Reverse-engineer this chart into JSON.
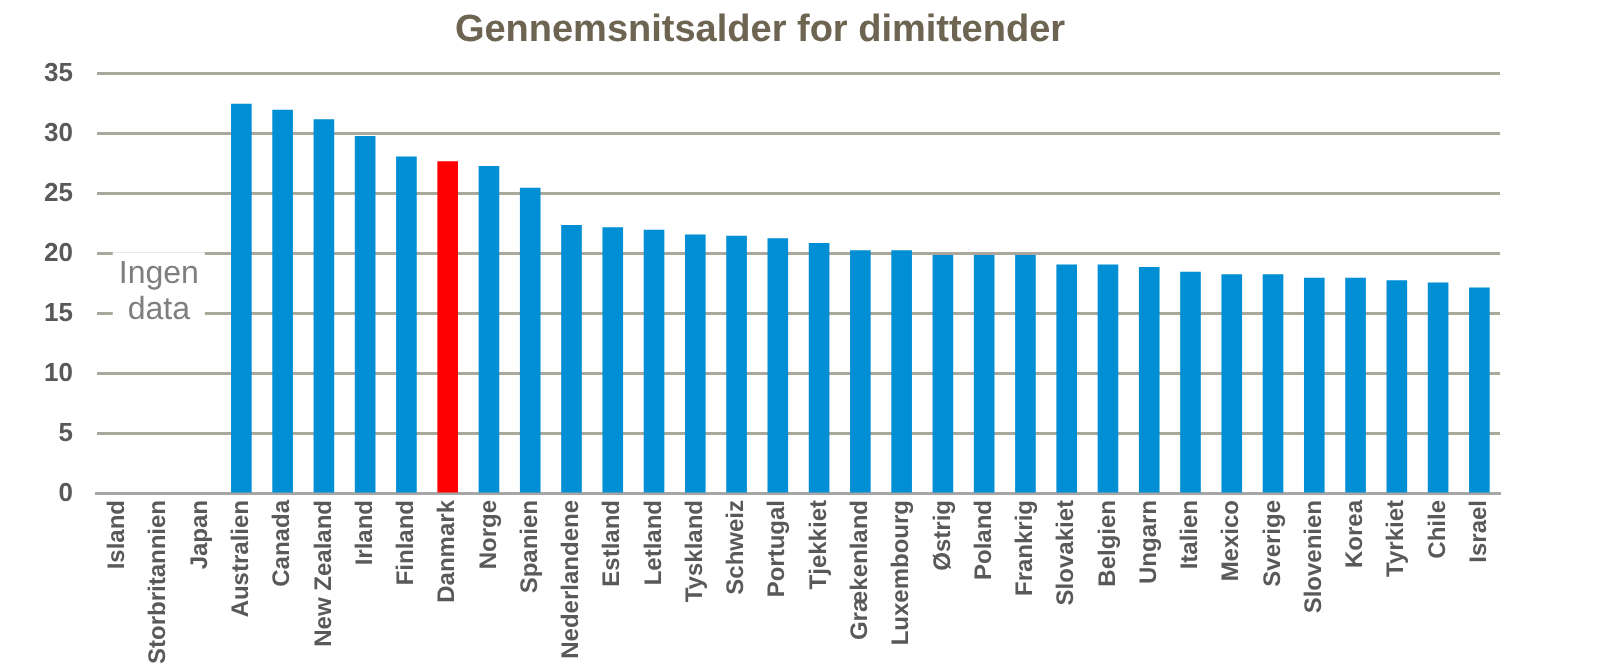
{
  "chart_data": {
    "type": "bar",
    "title": "Gennemsnitsalder for dimittender",
    "categories": [
      "Island",
      "Storbritannien",
      "Japan",
      "Australien",
      "Canada",
      "New Zealand",
      "Irland",
      "Finland",
      "Danmark",
      "Norge",
      "Spanien",
      "Nederlandene",
      "Estland",
      "Letland",
      "Tyskland",
      "Schweiz",
      "Portugal",
      "Tjekkiet",
      "Grækenland",
      "Luxembourg",
      "Østrig",
      "Poland",
      "Frankrig",
      "Slovakiet",
      "Belgien",
      "Ungarn",
      "Italien",
      "Mexico",
      "Sverige",
      "Slovenien",
      "Korea",
      "Tyrkiet",
      "Chile",
      "Israel"
    ],
    "values": [
      null,
      null,
      null,
      32.5,
      32.0,
      31.2,
      29.8,
      28.1,
      27.7,
      27.3,
      25.5,
      22.4,
      22.2,
      22.0,
      21.6,
      21.5,
      21.3,
      20.9,
      20.3,
      20.3,
      19.9,
      19.9,
      19.9,
      19.1,
      19.1,
      18.9,
      18.5,
      18.3,
      18.3,
      18.0,
      18.0,
      17.8,
      17.6,
      17.2
    ],
    "colors": [
      "#008fd5",
      "#008fd5",
      "#008fd5",
      "#008fd5",
      "#008fd5",
      "#008fd5",
      "#008fd5",
      "#008fd5",
      "#ff0000",
      "#008fd5",
      "#008fd5",
      "#008fd5",
      "#008fd5",
      "#008fd5",
      "#008fd5",
      "#008fd5",
      "#008fd5",
      "#008fd5",
      "#008fd5",
      "#008fd5",
      "#008fd5",
      "#008fd5",
      "#008fd5",
      "#008fd5",
      "#008fd5",
      "#008fd5",
      "#008fd5",
      "#008fd5",
      "#008fd5",
      "#008fd5",
      "#008fd5",
      "#008fd5",
      "#008fd5",
      "#008fd5"
    ],
    "ylim": [
      0,
      35
    ],
    "yticks": [
      0,
      5,
      10,
      15,
      20,
      25,
      30,
      35
    ],
    "grid": "y",
    "legend": false,
    "annotations": [
      "Ingen data"
    ]
  }
}
